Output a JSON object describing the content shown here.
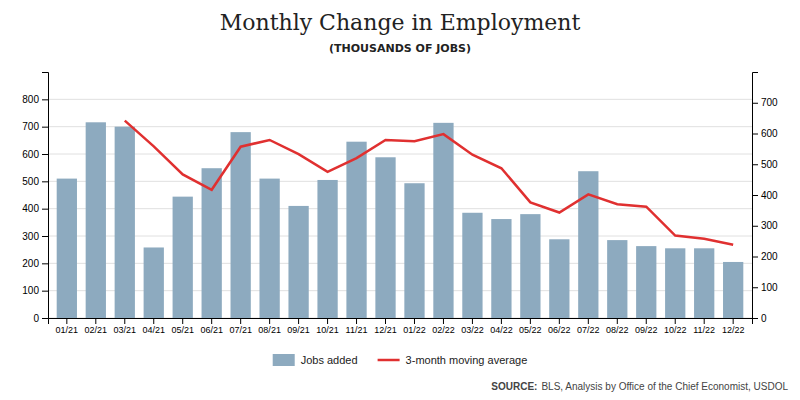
{
  "chart_data": {
    "type": "bar",
    "title": "Monthly Change in Employment",
    "subtitle": "(THOUSANDS OF JOBS)",
    "categories": [
      "01/21",
      "02/21",
      "03/21",
      "04/21",
      "05/21",
      "06/21",
      "07/21",
      "08/21",
      "09/21",
      "10/21",
      "11/21",
      "12/21",
      "01/22",
      "02/22",
      "03/22",
      "04/22",
      "05/22",
      "06/22",
      "07/22",
      "08/22",
      "09/22",
      "10/22",
      "11/22",
      "12/22"
    ],
    "series": [
      {
        "name": "Jobs added",
        "type": "bar",
        "color": "#8daabf",
        "values": [
          510,
          716,
          700,
          258,
          444,
          548,
          680,
          510,
          410,
          505,
          645,
          588,
          493,
          714,
          385,
          362,
          380,
          288,
          537,
          285,
          263,
          255,
          255,
          205
        ]
      },
      {
        "name": "3-month moving average",
        "type": "line",
        "color": "#e03030",
        "axis": "y2",
        "values": [
          null,
          null,
          642,
          558,
          467,
          417,
          557,
          579,
          533,
          475,
          520,
          579,
          575,
          598,
          531,
          487,
          376,
          343,
          402,
          370,
          362,
          268,
          258,
          238
        ]
      }
    ],
    "ylim": [
      0,
      900
    ],
    "yticks": [
      0,
      100,
      200,
      300,
      400,
      500,
      600,
      700,
      800
    ],
    "y2lim": [
      0,
      800
    ],
    "y2ticks": [
      0,
      100,
      200,
      300,
      400,
      500,
      600,
      700
    ],
    "grid": true,
    "legend": "bottom",
    "annotations": [
      "SOURCE:",
      "BLS, Analysis by Office of the Chief Economist, USDOL"
    ]
  }
}
